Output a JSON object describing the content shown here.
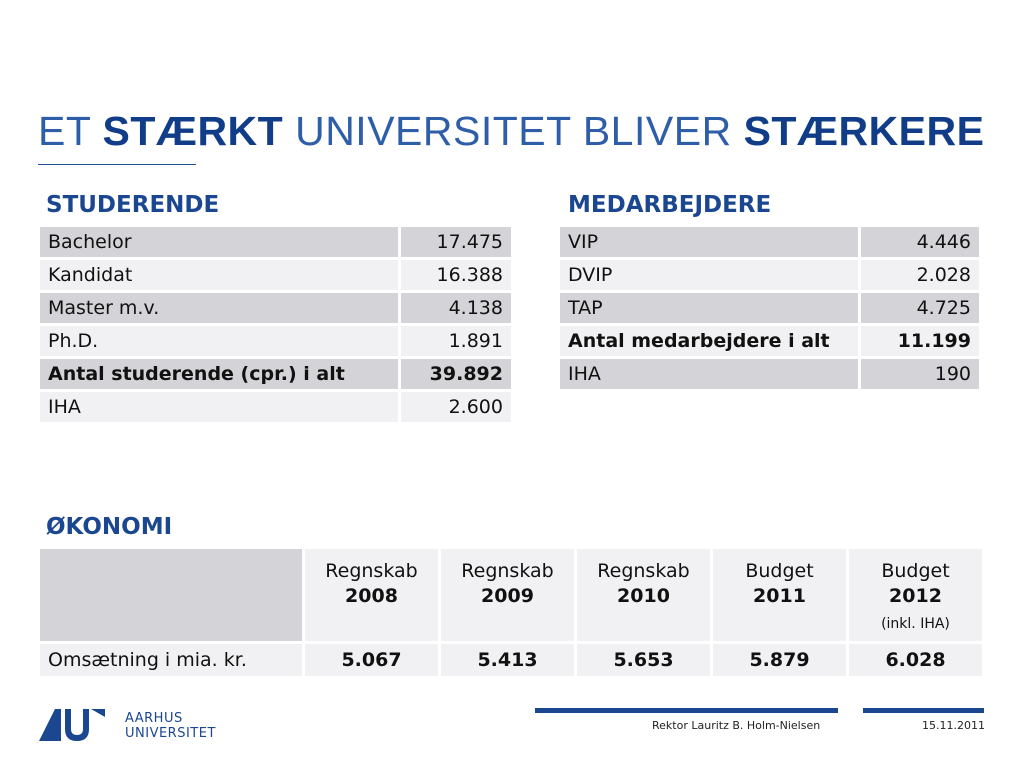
{
  "title": {
    "part1": "ET ",
    "part2": "STÆRKT",
    "part3": " UNIVERSITET BLIVER ",
    "part4": "STÆRKERE"
  },
  "studerende": {
    "heading": "STUDERENDE",
    "rows": [
      {
        "label": "Bachelor",
        "value": "17.475"
      },
      {
        "label": "Kandidat",
        "value": "16.388"
      },
      {
        "label": "Master m.v.",
        "value": "4.138"
      },
      {
        "label": "Ph.D.",
        "value": "1.891"
      },
      {
        "label": "Antal studerende (cpr.) i alt",
        "value": "39.892"
      },
      {
        "label": "IHA",
        "value": "2.600"
      }
    ]
  },
  "medarbejdere": {
    "heading": "MEDARBEJDERE",
    "rows": [
      {
        "label": "VIP",
        "value": "4.446"
      },
      {
        "label": "DVIP",
        "value": "2.028"
      },
      {
        "label": "TAP",
        "value": "4.725"
      },
      {
        "label": "Antal medarbejdere i alt",
        "value": "11.199"
      },
      {
        "label": "IHA",
        "value": "190"
      }
    ]
  },
  "okonomi": {
    "heading": "ØKONOMI",
    "columns": [
      {
        "top": "Regnskab",
        "year": "2008",
        "note": ""
      },
      {
        "top": "Regnskab",
        "year": "2009",
        "note": ""
      },
      {
        "top": "Regnskab",
        "year": "2010",
        "note": ""
      },
      {
        "top": "Budget",
        "year": "2011",
        "note": ""
      },
      {
        "top": "Budget",
        "year": "2012",
        "note": "(inkl. IHA)"
      }
    ],
    "row_label": "Omsætning i mia. kr.",
    "values": [
      "5.067",
      "5.413",
      "5.653",
      "5.879",
      "6.028"
    ]
  },
  "footer": {
    "logo_line1": "AARHUS",
    "logo_line2": "UNIVERSITET",
    "presenter": "Rektor Lauritz B. Holm-Nielsen",
    "date": "15.11.2011"
  },
  "colors": {
    "brand_blue": "#1b4791",
    "row_shade": "#d4d4d8",
    "row_plain": "#f1f1f3"
  }
}
